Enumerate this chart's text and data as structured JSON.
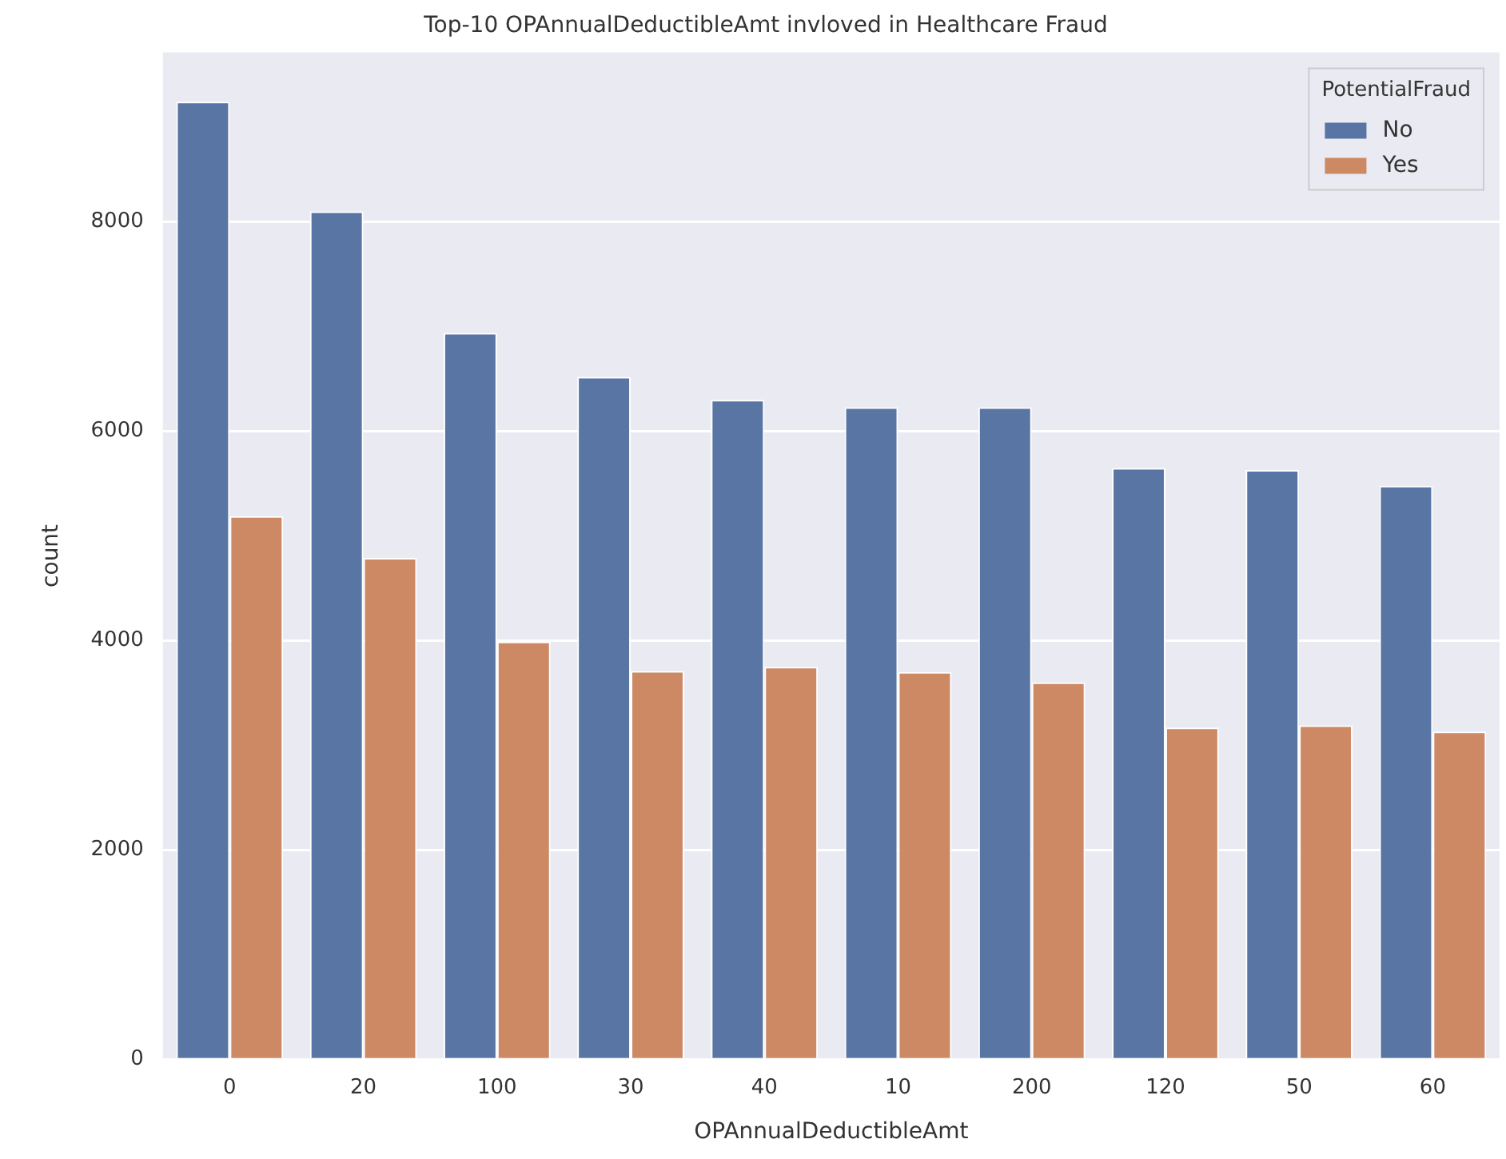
{
  "chart_data": {
    "type": "bar",
    "title": "Top-10 OPAnnualDeductibleAmt invloved in Healthcare Fraud",
    "xlabel": "OPAnnualDeductibleAmt",
    "ylabel": "count",
    "legend_title": "PotentialFraud",
    "categories": [
      "0",
      "20",
      "100",
      "30",
      "40",
      "10",
      "200",
      "120",
      "50",
      "60"
    ],
    "series": [
      {
        "name": "No",
        "color": "#5975a4",
        "values": [
          9150,
          8100,
          6940,
          6520,
          6300,
          6230,
          6230,
          5650,
          5630,
          5480
        ]
      },
      {
        "name": "Yes",
        "color": "#cc8963",
        "values": [
          5190,
          4790,
          3990,
          3710,
          3750,
          3700,
          3600,
          3170,
          3190,
          3130
        ]
      }
    ],
    "ylim": [
      0,
      9620
    ],
    "yticks": [
      0,
      2000,
      4000,
      6000,
      8000
    ],
    "grid": "y",
    "legend": "top right"
  }
}
